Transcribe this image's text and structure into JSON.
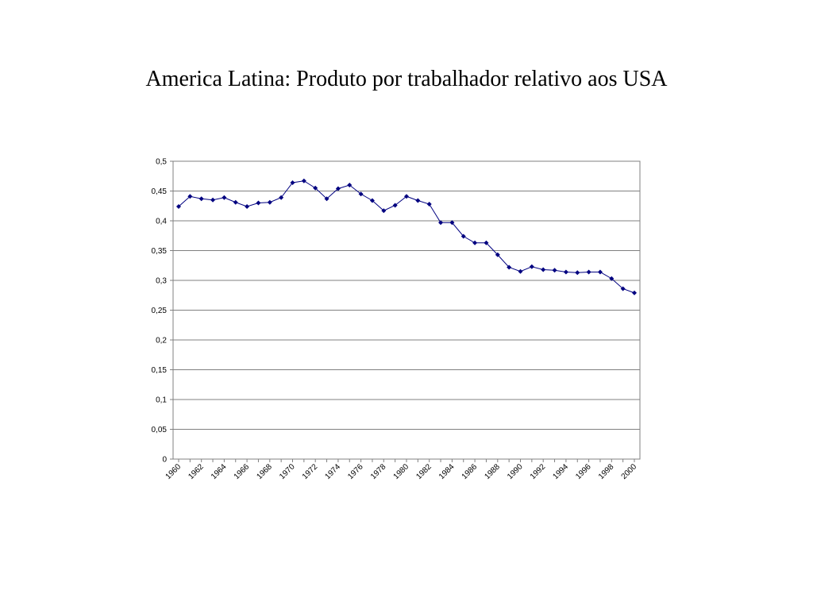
{
  "slide": {
    "title": "America Latina: Produto por trabalhador relativo aos USA"
  },
  "chart_data": {
    "type": "line",
    "title": "",
    "xlabel": "",
    "ylabel": "",
    "ylim": [
      0,
      0.5
    ],
    "yticks": [
      "0",
      "0,05",
      "0,1",
      "0,15",
      "0,2",
      "0,25",
      "0,3",
      "0,35",
      "0,4",
      "0,45",
      "0,5"
    ],
    "xtick_labels": [
      "1960",
      "1962",
      "1964",
      "1966",
      "1968",
      "1970",
      "1972",
      "1974",
      "1976",
      "1978",
      "1980",
      "1982",
      "1984",
      "1986",
      "1988",
      "1990",
      "1992",
      "1994",
      "1996",
      "1998",
      "2000"
    ],
    "grid": "horizontal",
    "legend": "none",
    "colors": {
      "line": "#000080",
      "marker": "#000080",
      "gridline": "#808080",
      "axis": "#808080"
    },
    "series": [
      {
        "x": [
          1960,
          1961,
          1962,
          1963,
          1964,
          1965,
          1966,
          1967,
          1968,
          1969,
          1970,
          1971,
          1972,
          1973,
          1974,
          1975,
          1976,
          1977,
          1978,
          1979,
          1980,
          1981,
          1982,
          1983,
          1984,
          1985,
          1986,
          1987,
          1988,
          1989,
          1990,
          1991,
          1992,
          1993,
          1994,
          1995,
          1996,
          1997,
          1998,
          1999,
          2000
        ],
        "values": [
          0.424,
          0.441,
          0.437,
          0.435,
          0.439,
          0.431,
          0.424,
          0.43,
          0.431,
          0.439,
          0.464,
          0.467,
          0.455,
          0.437,
          0.454,
          0.46,
          0.445,
          0.434,
          0.417,
          0.426,
          0.441,
          0.434,
          0.428,
          0.397,
          0.397,
          0.374,
          0.363,
          0.363,
          0.343,
          0.322,
          0.315,
          0.323,
          0.318,
          0.317,
          0.314,
          0.313,
          0.314,
          0.314,
          0.303,
          0.286,
          0.279
        ]
      }
    ]
  }
}
